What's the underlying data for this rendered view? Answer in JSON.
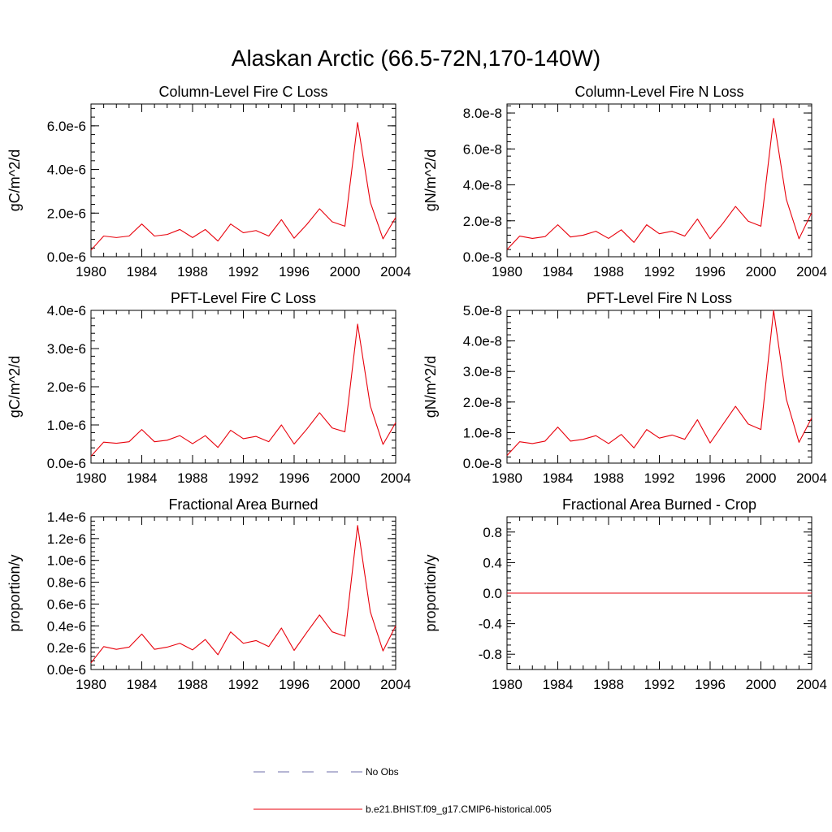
{
  "figure": {
    "title": "Alaskan Arctic (66.5-72N,170-140W)"
  },
  "legend": {
    "obs_label": "No Obs",
    "model_label": "b.e21.BHIST.f09_g17.CMIP6-historical.005",
    "obs_color": "#6e6ea8",
    "model_color": "#e8000b"
  },
  "chart_data": [
    {
      "type": "line",
      "title": "Column-Level Fire C Loss",
      "ylabel": "gC/m^2/d",
      "xlim": [
        1980,
        2004
      ],
      "ylim": [
        0,
        7e-06
      ],
      "x_ticks": [
        1980,
        1984,
        1988,
        1992,
        1996,
        2000,
        2004
      ],
      "x_tick_labels": [
        "1980",
        "1984",
        "1988",
        "1992",
        "1996",
        "2000",
        "2004"
      ],
      "y_ticks": [
        0,
        2e-06,
        4e-06,
        6e-06
      ],
      "y_tick_labels": [
        "0.0e-6",
        "2.0e-6",
        "4.0e-6",
        "6.0e-6"
      ],
      "x": [
        1980,
        1981,
        1982,
        1983,
        1984,
        1985,
        1986,
        1987,
        1988,
        1989,
        1990,
        1991,
        1992,
        1993,
        1994,
        1995,
        1996,
        1997,
        1998,
        1999,
        2000,
        2001,
        2002,
        2003,
        2004
      ],
      "series": [
        {
          "values": [
            3e-07,
            9.5e-07,
            8.8e-07,
            9.5e-07,
            1.5e-06,
            9.5e-07,
            1.02e-06,
            1.25e-06,
            8.8e-07,
            1.25e-06,
            7.2e-07,
            1.5e-06,
            1.1e-06,
            1.2e-06,
            9.5e-07,
            1.7e-06,
            8.5e-07,
            1.48e-06,
            2.2e-06,
            1.6e-06,
            1.4e-06,
            6.15e-06,
            2.5e-06,
            8.2e-07,
            1.8e-06
          ],
          "color": "#e8000b"
        }
      ]
    },
    {
      "type": "line",
      "title": "Column-Level Fire N Loss",
      "ylabel": "gN/m^2/d",
      "xlim": [
        1980,
        2004
      ],
      "ylim": [
        0,
        8.5e-08
      ],
      "x_ticks": [
        1980,
        1984,
        1988,
        1992,
        1996,
        2000,
        2004
      ],
      "x_tick_labels": [
        "1980",
        "1984",
        "1988",
        "1992",
        "1996",
        "2000",
        "2004"
      ],
      "y_ticks": [
        0,
        2e-08,
        4e-08,
        6e-08,
        8e-08
      ],
      "y_tick_labels": [
        "0.0e-8",
        "2.0e-8",
        "4.0e-8",
        "6.0e-8",
        "8.0e-8"
      ],
      "x": [
        1980,
        1981,
        1982,
        1983,
        1984,
        1985,
        1986,
        1987,
        1988,
        1989,
        1990,
        1991,
        1992,
        1993,
        1994,
        1995,
        1996,
        1997,
        1998,
        1999,
        2000,
        2001,
        2002,
        2003,
        2004
      ],
      "series": [
        {
          "values": [
            4e-09,
            1.15e-08,
            1.02e-08,
            1.12e-08,
            1.78e-08,
            1.1e-08,
            1.2e-08,
            1.42e-08,
            1.02e-08,
            1.5e-08,
            8e-09,
            1.78e-08,
            1.28e-08,
            1.42e-08,
            1.15e-08,
            2.1e-08,
            1e-08,
            1.85e-08,
            2.8e-08,
            1.98e-08,
            1.7e-08,
            7.7e-08,
            3.2e-08,
            1e-08,
            2.45e-08
          ],
          "color": "#e8000b"
        }
      ]
    },
    {
      "type": "line",
      "title": "PFT-Level Fire C Loss",
      "ylabel": "gC/m^2/d",
      "xlim": [
        1980,
        2004
      ],
      "ylim": [
        0,
        4e-06
      ],
      "x_ticks": [
        1980,
        1984,
        1988,
        1992,
        1996,
        2000,
        2004
      ],
      "x_tick_labels": [
        "1980",
        "1984",
        "1988",
        "1992",
        "1996",
        "2000",
        "2004"
      ],
      "y_ticks": [
        0,
        1e-06,
        2e-06,
        3e-06,
        4e-06
      ],
      "y_tick_labels": [
        "0.0e-6",
        "1.0e-6",
        "2.0e-6",
        "3.0e-6",
        "4.0e-6"
      ],
      "x": [
        1980,
        1981,
        1982,
        1983,
        1984,
        1985,
        1986,
        1987,
        1988,
        1989,
        1990,
        1991,
        1992,
        1993,
        1994,
        1995,
        1996,
        1997,
        1998,
        1999,
        2000,
        2001,
        2002,
        2003,
        2004
      ],
      "series": [
        {
          "values": [
            1.8e-07,
            5.5e-07,
            5.2e-07,
            5.6e-07,
            8.8e-07,
            5.6e-07,
            6e-07,
            7.2e-07,
            5.1e-07,
            7.2e-07,
            4.1e-07,
            8.6e-07,
            6.4e-07,
            7e-07,
            5.6e-07,
            1e-06,
            5e-07,
            8.9e-07,
            1.32e-06,
            9.2e-07,
            8.2e-07,
            3.64e-06,
            1.5e-06,
            4.9e-07,
            1.06e-06
          ],
          "color": "#e8000b"
        }
      ]
    },
    {
      "type": "line",
      "title": "PFT-Level Fire N Loss",
      "ylabel": "gN/m^2/d",
      "xlim": [
        1980,
        2004
      ],
      "ylim": [
        0,
        5e-08
      ],
      "x_ticks": [
        1980,
        1984,
        1988,
        1992,
        1996,
        2000,
        2004
      ],
      "x_tick_labels": [
        "1980",
        "1984",
        "1988",
        "1992",
        "1996",
        "2000",
        "2004"
      ],
      "y_ticks": [
        0,
        1e-08,
        2e-08,
        3e-08,
        4e-08,
        5e-08
      ],
      "y_tick_labels": [
        "0.0e-8",
        "1.0e-8",
        "2.0e-8",
        "3.0e-8",
        "4.0e-8",
        "5.0e-8"
      ],
      "x": [
        1980,
        1981,
        1982,
        1983,
        1984,
        1985,
        1986,
        1987,
        1988,
        1989,
        1990,
        1991,
        1992,
        1993,
        1994,
        1995,
        1996,
        1997,
        1998,
        1999,
        2000,
        2001,
        2002,
        2003,
        2004
      ],
      "series": [
        {
          "values": [
            2.5e-09,
            7e-09,
            6.4e-09,
            7.2e-09,
            1.18e-08,
            7.2e-09,
            7.8e-09,
            9e-09,
            6.4e-09,
            9.4e-09,
            5e-09,
            1.1e-08,
            8.2e-09,
            9.2e-09,
            7.8e-09,
            1.42e-08,
            6.6e-09,
            1.26e-08,
            1.86e-08,
            1.28e-08,
            1.1e-08,
            5e-08,
            2.1e-08,
            6.8e-09,
            1.48e-08
          ],
          "color": "#e8000b"
        }
      ]
    },
    {
      "type": "line",
      "title": "Fractional Area Burned",
      "ylabel": "proportion/y",
      "xlim": [
        1980,
        2004
      ],
      "ylim": [
        0,
        1.4e-06
      ],
      "x_ticks": [
        1980,
        1984,
        1988,
        1992,
        1996,
        2000,
        2004
      ],
      "x_tick_labels": [
        "1980",
        "1984",
        "1988",
        "1992",
        "1996",
        "2000",
        "2004"
      ],
      "y_ticks": [
        0,
        2e-07,
        4e-07,
        6e-07,
        8e-07,
        1e-06,
        1.2e-06,
        1.4e-06
      ],
      "y_tick_labels": [
        "0.0e-6",
        "0.2e-6",
        "0.4e-6",
        "0.6e-6",
        "0.8e-6",
        "1.0e-6",
        "1.2e-6",
        "1.4e-6"
      ],
      "x": [
        1980,
        1981,
        1982,
        1983,
        1984,
        1985,
        1986,
        1987,
        1988,
        1989,
        1990,
        1991,
        1992,
        1993,
        1994,
        1995,
        1996,
        1997,
        1998,
        1999,
        2000,
        2001,
        2002,
        2003,
        2004
      ],
      "series": [
        {
          "values": [
            6e-08,
            2.1e-07,
            1.85e-07,
            2.05e-07,
            3.25e-07,
            1.85e-07,
            2.05e-07,
            2.4e-07,
            1.8e-07,
            2.75e-07,
            1.35e-07,
            3.45e-07,
            2.4e-07,
            2.65e-07,
            2.1e-07,
            3.8e-07,
            1.75e-07,
            3.4e-07,
            5e-07,
            3.45e-07,
            3.05e-07,
            1.32e-06,
            5.3e-07,
            1.7e-07,
            4e-07
          ],
          "color": "#e8000b"
        }
      ]
    },
    {
      "type": "line",
      "title": "Fractional Area Burned - Crop",
      "ylabel": "proportion/y",
      "xlim": [
        1980,
        2004
      ],
      "ylim": [
        -1.0,
        1.0
      ],
      "x_ticks": [
        1980,
        1984,
        1988,
        1992,
        1996,
        2000,
        2004
      ],
      "x_tick_labels": [
        "1980",
        "1984",
        "1988",
        "1992",
        "1996",
        "2000",
        "2004"
      ],
      "y_ticks": [
        -0.8,
        -0.4,
        0.0,
        0.4,
        0.8
      ],
      "y_tick_labels": [
        "-0.8",
        "-0.4",
        "0.0",
        "0.4",
        "0.8"
      ],
      "x": [
        1980,
        1981,
        1982,
        1983,
        1984,
        1985,
        1986,
        1987,
        1988,
        1989,
        1990,
        1991,
        1992,
        1993,
        1994,
        1995,
        1996,
        1997,
        1998,
        1999,
        2000,
        2001,
        2002,
        2003,
        2004
      ],
      "series": [
        {
          "values": [
            0,
            0,
            0,
            0,
            0,
            0,
            0,
            0,
            0,
            0,
            0,
            0,
            0,
            0,
            0,
            0,
            0,
            0,
            0,
            0,
            0,
            0,
            0,
            0,
            0
          ],
          "color": "#e8000b"
        }
      ]
    }
  ]
}
